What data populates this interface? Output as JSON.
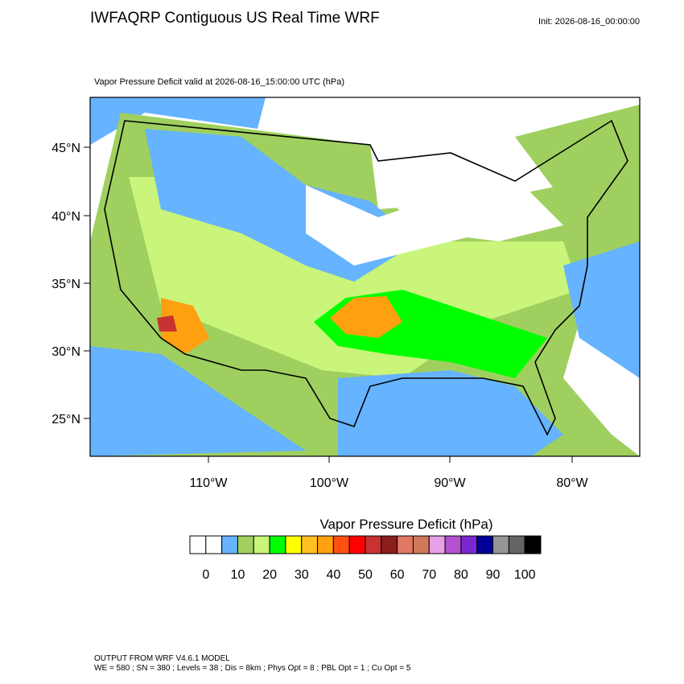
{
  "header": {
    "title": "IWFAQRP Contiguous US Real Time WRF",
    "init": "Init: 2026-08-16_00:00:00"
  },
  "map": {
    "subtitle": "Vapor Pressure Deficit valid at 2026-08-16_15:00:00 UTC   (hPa)",
    "lat_labels": [
      "45°N",
      "40°N",
      "35°N",
      "30°N",
      "25°N"
    ],
    "lon_labels": [
      "110°W",
      "100°W",
      "90°W",
      "80°W"
    ]
  },
  "colorbar": {
    "title": "Vapor Pressure Deficit  (hPa)",
    "colors": [
      "#ffffff",
      "#ffffff",
      "#66b3ff",
      "#9fd05f",
      "#c8f57a",
      "#00ff00",
      "#ffff00",
      "#ffc020",
      "#ffa010",
      "#ff5010",
      "#ff0000",
      "#c83232",
      "#8c1e1e",
      "#e07864",
      "#d2785a",
      "#e6a0e6",
      "#b450d2",
      "#7a28d2",
      "#000096",
      "#969696",
      "#646464",
      "#000000"
    ],
    "labels": [
      0,
      10,
      20,
      30,
      40,
      50,
      60,
      70,
      80,
      90,
      100
    ]
  },
  "footer": {
    "line1": "OUTPUT FROM WRF V4.6.1 MODEL",
    "line2": "WE = 580 ; SN = 380 ; Levels = 38 ; Dis = 8km ; Phys Opt = 8 ; PBL Opt = 1 ; Cu Opt = 5"
  }
}
